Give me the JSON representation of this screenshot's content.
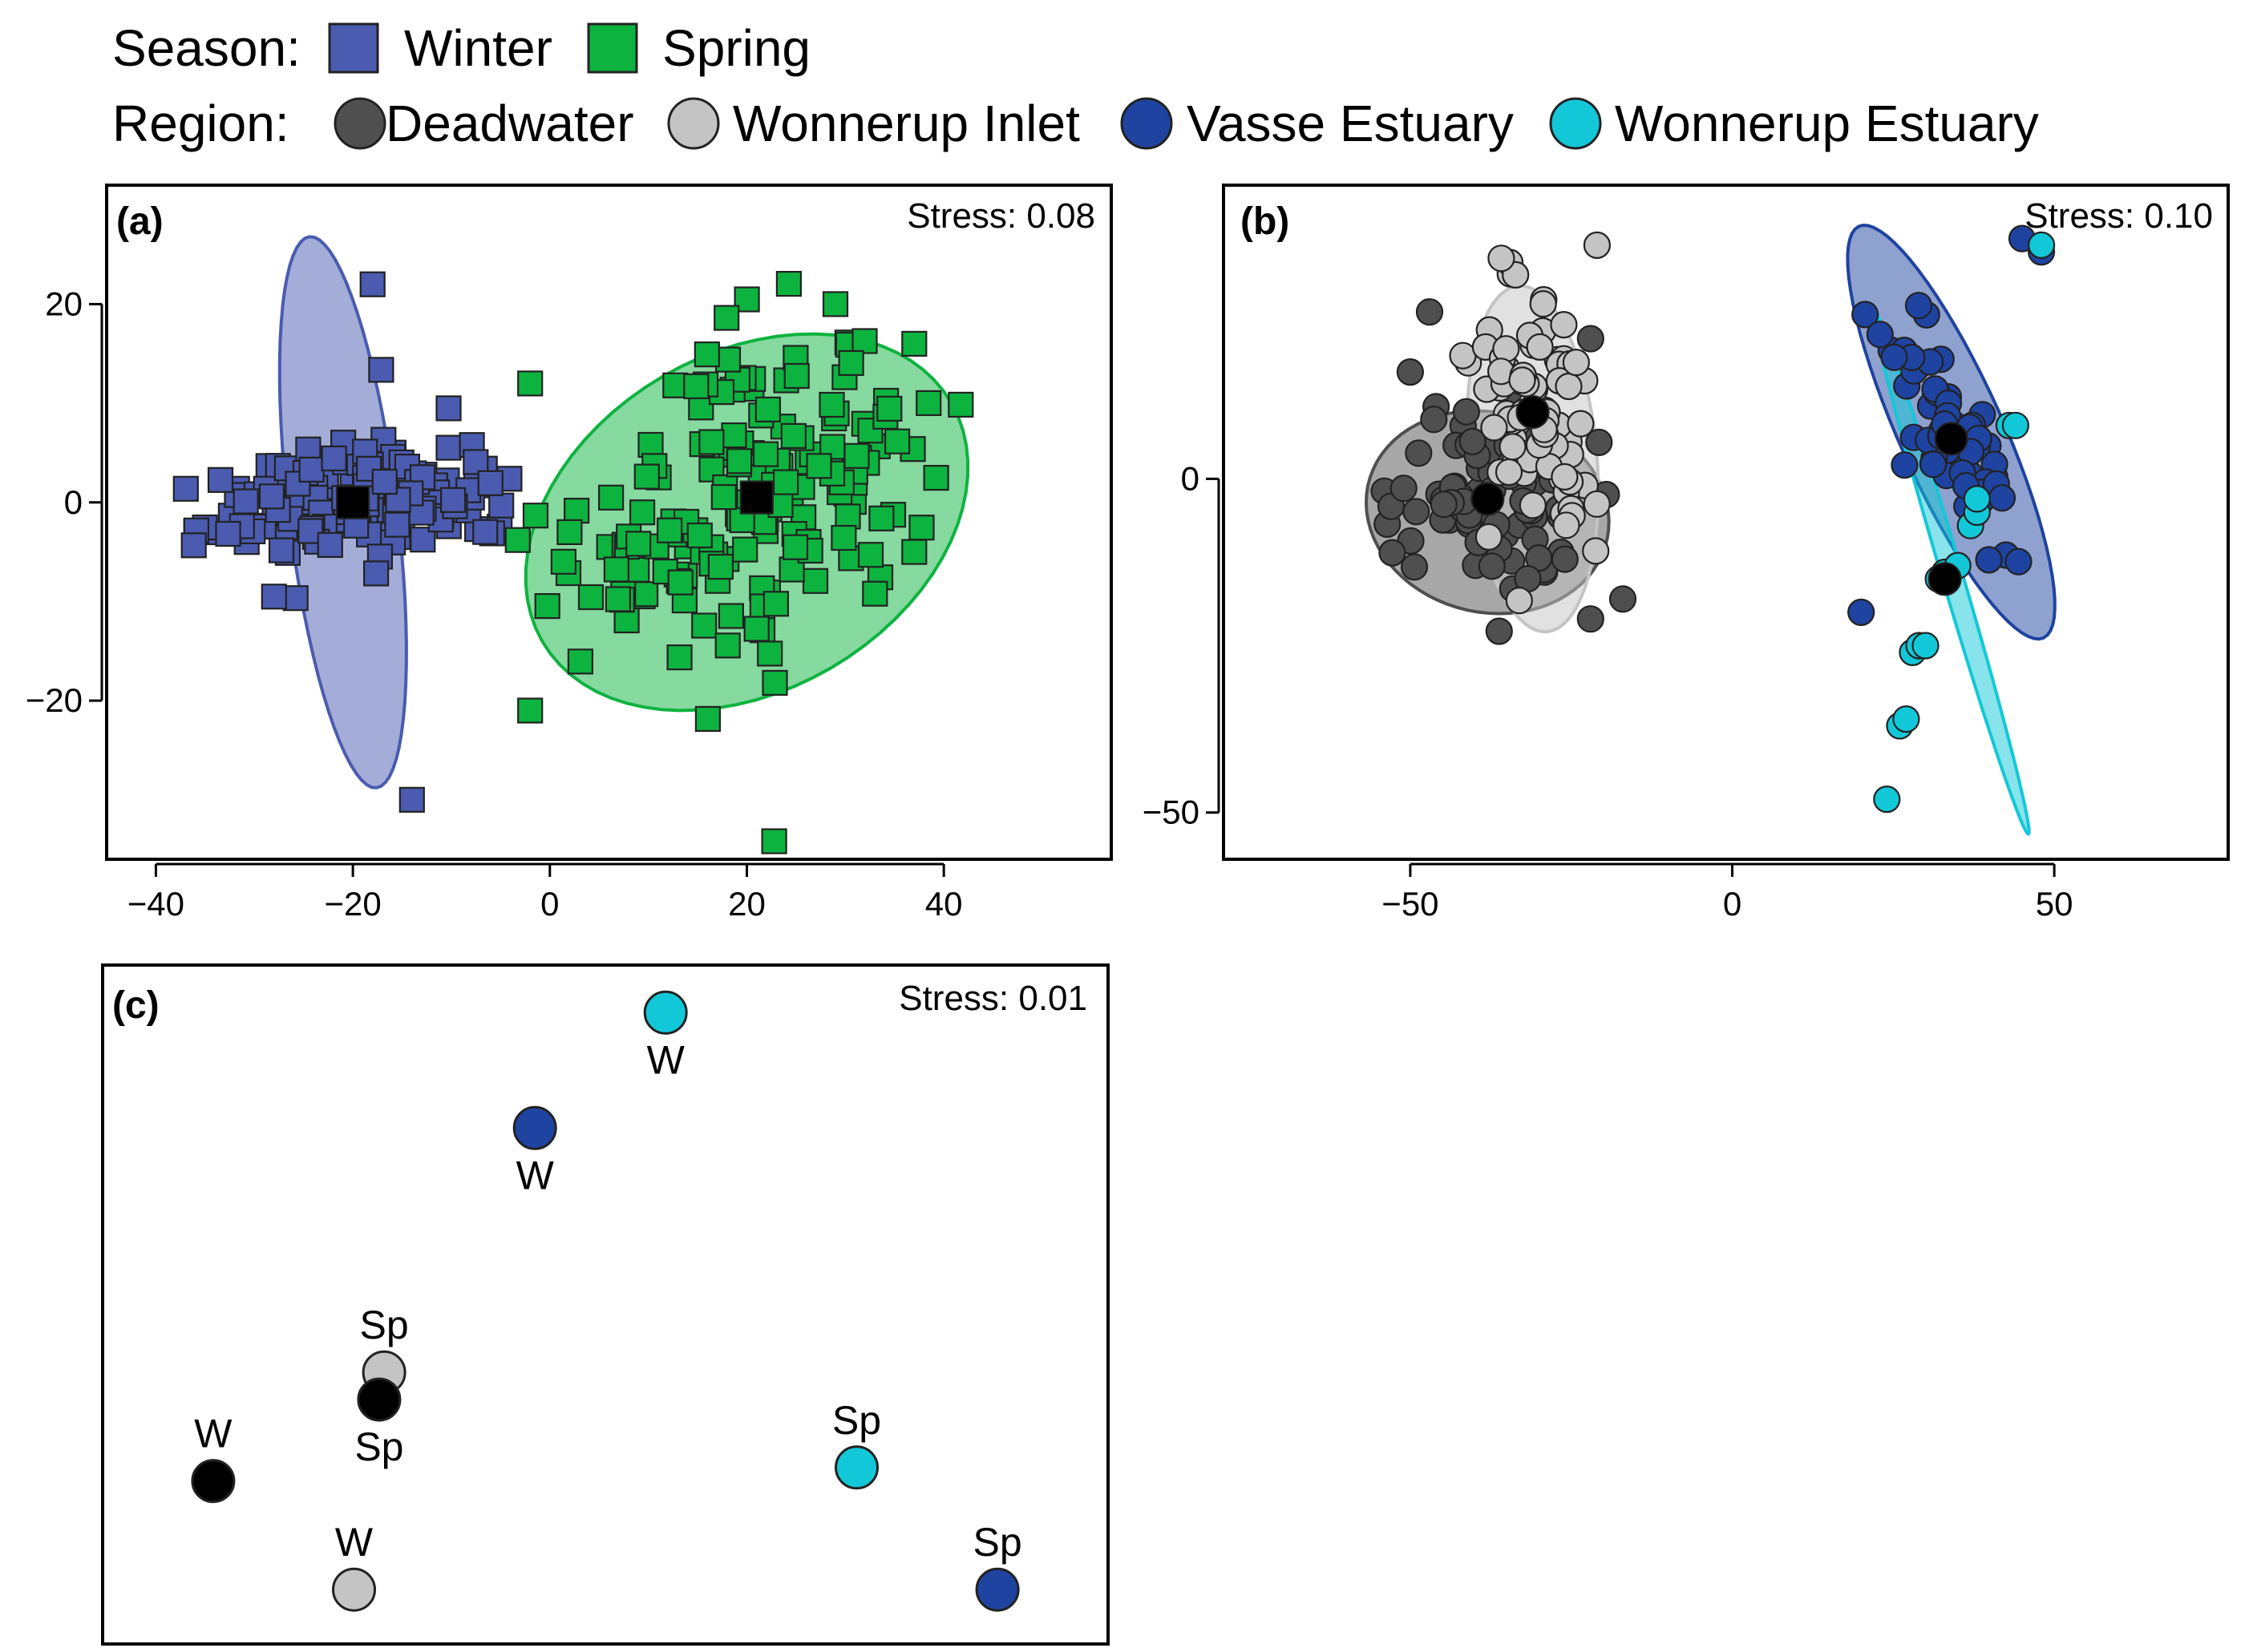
{
  "colors": {
    "winter": "#4a5bb0",
    "spring": "#0db33f",
    "deadwater": "#4f4f4f",
    "wonnerup_inlet": "#c4c4c4",
    "vasse_estuary": "#1f43a0",
    "wonnerup_estuary": "#12c8d8",
    "centroid": "#000000"
  },
  "legend": {
    "season_title": "Season:",
    "season_items": [
      {
        "label": "Winter",
        "key": "winter"
      },
      {
        "label": "Spring",
        "key": "spring"
      }
    ],
    "region_title": "Region:",
    "region_items": [
      {
        "label": "Deadwater",
        "key": "deadwater"
      },
      {
        "label": "Wonnerup Inlet",
        "key": "wonnerup_inlet"
      },
      {
        "label": "Vasse Estuary",
        "key": "vasse_estuary"
      },
      {
        "label": "Wonnerup Estuary",
        "key": "wonnerup_estuary"
      }
    ]
  },
  "chart_data": [
    {
      "type": "scatter",
      "panel": "(a)",
      "stress": "Stress: 0.08",
      "grouping": "season",
      "xlim": [
        -45,
        57
      ],
      "ylim": [
        -36,
        32
      ],
      "xticks": [
        -40,
        -20,
        0,
        20,
        40
      ],
      "xtick_labels": [
        "−40",
        "−20",
        "0",
        "20",
        "40"
      ],
      "yticks": [
        -20,
        0,
        20
      ],
      "ytick_labels": [
        "−20",
        "0",
        "20"
      ],
      "groups": [
        {
          "name": "Winter",
          "key": "winter",
          "marker": "square",
          "centroid": [
            -20,
            0
          ],
          "ellipse": {
            "cx": -21,
            "cy": -1,
            "rx": 28,
            "ry": 5.5,
            "angle_deg": -83
          },
          "point_distribution": {
            "count": 140,
            "spread": [
              3.2,
              9.5
            ],
            "angle_deg": -83
          },
          "outliers": [
            [
              -14,
              -30
            ],
            [
              -28,
              -9.5
            ],
            [
              -18,
              22
            ]
          ]
        },
        {
          "name": "Spring",
          "key": "spring",
          "marker": "square",
          "centroid": [
            21,
            0.5
          ],
          "ellipse": {
            "cx": 20,
            "cy": -2,
            "rx": 24,
            "ry": 17,
            "angle_deg": 30
          },
          "point_distribution": {
            "count": 170,
            "spread": [
              9.5,
              7.5
            ],
            "angle_deg": 28
          },
          "outliers": [
            [
              -2,
              12
            ],
            [
              -2,
              -21
            ],
            [
              2,
              -3
            ],
            [
              37,
              -5
            ],
            [
              29,
              20
            ],
            [
              37,
              16
            ]
          ]
        }
      ]
    },
    {
      "type": "scatter",
      "panel": "(b)",
      "stress": "Stress: 0.10",
      "grouping": "region",
      "xlim": [
        -79,
        77
      ],
      "ylim": [
        -57,
        44
      ],
      "xticks": [
        -50,
        0,
        50
      ],
      "xtick_labels": [
        "−50",
        "0",
        "50"
      ],
      "yticks": [
        -50,
        0
      ],
      "ytick_labels": [
        "−50",
        "0"
      ],
      "groups": [
        {
          "name": "Deadwater",
          "key": "deadwater",
          "marker": "circle",
          "centroid": [
            -38,
            -3
          ],
          "ellipse": {
            "cx": -38,
            "cy": -5,
            "rx": 19,
            "ry": 15,
            "angle_deg": -12
          },
          "point_distribution": {
            "count": 80,
            "spread": [
              7.5,
              6.5
            ],
            "angle_deg": -15
          },
          "outliers": [
            [
              -47,
              25
            ],
            [
              -50,
              16
            ],
            [
              -22,
              21
            ],
            [
              -22,
              -21
            ],
            [
              -17,
              -18
            ]
          ]
        },
        {
          "name": "Wonnerup Inlet",
          "key": "wonnerup_inlet",
          "marker": "circle",
          "centroid": [
            -31,
            10
          ],
          "ellipse": {
            "cx": -31,
            "cy": 3,
            "rx": 26,
            "ry": 10,
            "angle_deg": -85
          },
          "point_distribution": {
            "count": 85,
            "spread": [
              10,
              4
            ],
            "angle_deg": -85
          },
          "outliers": [
            [
              -21,
              35
            ]
          ]
        },
        {
          "name": "Vasse Estuary",
          "key": "vasse_estuary",
          "marker": "circle",
          "centroid": [
            34,
            6
          ],
          "ellipse": {
            "cx": 34,
            "cy": 7,
            "rx": 34,
            "ry": 8,
            "angle_deg": -65
          },
          "point_distribution": {
            "count": 60,
            "spread": [
              11,
              3
            ],
            "angle_deg": -62
          },
          "outliers": [
            [
              20,
              -20
            ],
            [
              45,
              36
            ],
            [
              48,
              34
            ]
          ]
        },
        {
          "name": "Wonnerup Estuary",
          "key": "wonnerup_estuary",
          "marker": "circle",
          "centroid": [
            33,
            -15
          ],
          "ellipse": {
            "cx": 34,
            "cy": -14,
            "rx": 41,
            "ry": 1.6,
            "angle_deg": -73
          },
          "points": [
            [
              24,
              -48
            ],
            [
              26,
              -37
            ],
            [
              27,
              -36
            ],
            [
              28,
              -26
            ],
            [
              29,
              -25
            ],
            [
              30,
              -25
            ],
            [
              32,
              -15
            ],
            [
              33,
              -14
            ],
            [
              35,
              -13
            ],
            [
              37,
              -7
            ],
            [
              38,
              -5
            ],
            [
              38,
              -3
            ],
            [
              43,
              8
            ],
            [
              44,
              8
            ],
            [
              48,
              35
            ]
          ]
        }
      ]
    },
    {
      "type": "scatter",
      "panel": "(c)",
      "stress": "Stress: 0.01",
      "axes_visible": false,
      "xlim": [
        0,
        100
      ],
      "ylim": [
        0,
        100
      ],
      "points": [
        {
          "region": "Wonnerup Estuary",
          "key": "wonnerup_estuary",
          "x": 56,
          "y": 93,
          "label": "W",
          "label_pos": "below"
        },
        {
          "region": "Vasse Estuary",
          "key": "vasse_estuary",
          "x": 43,
          "y": 76,
          "label": "W",
          "label_pos": "below"
        },
        {
          "region": "Wonnerup Inlet",
          "key": "wonnerup_inlet",
          "x": 28,
          "y": 40,
          "label": "Sp",
          "label_pos": "above"
        },
        {
          "region": "Deadwater",
          "key": "deadwater_sp",
          "x": 27.5,
          "y": 36,
          "label": "Sp",
          "label_pos": "below",
          "color": "centroid"
        },
        {
          "region": "Deadwater",
          "key": "deadwater_w",
          "x": 11,
          "y": 24,
          "label": "W",
          "label_pos": "above",
          "color": "centroid"
        },
        {
          "region": "Wonnerup Inlet",
          "key": "wonnerup_inlet",
          "x": 25,
          "y": 8,
          "label": "W",
          "label_pos": "above"
        },
        {
          "region": "Wonnerup Estuary",
          "key": "wonnerup_estuary",
          "x": 75,
          "y": 26,
          "label": "Sp",
          "label_pos": "above"
        },
        {
          "region": "Vasse Estuary",
          "key": "vasse_estuary",
          "x": 89,
          "y": 8,
          "label": "Sp",
          "label_pos": "above"
        }
      ]
    }
  ]
}
